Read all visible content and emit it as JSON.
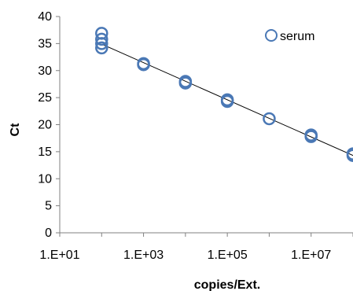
{
  "chart_data": {
    "type": "scatter",
    "title": "",
    "xlabel": "copies/Ext.",
    "ylabel": "Ct",
    "xscale": "log",
    "xlim": [
      10,
      100000000
    ],
    "ylim": [
      0,
      40
    ],
    "yticks": [
      0,
      5,
      10,
      15,
      20,
      25,
      30,
      35,
      40
    ],
    "xticks": [
      10,
      1000,
      100000,
      10000000
    ],
    "xtick_labels": [
      "1.E+01",
      "1.E+03",
      "1.E+05",
      "1.E+07"
    ],
    "grid": false,
    "legend": {
      "position": "top-right",
      "marker": "open-circle"
    },
    "colors": {
      "marker": "#4a78b5",
      "trendline": "#000000",
      "axis": "#808080"
    },
    "series": [
      {
        "name": "serum",
        "marker": "open-circle",
        "points": [
          [
            100,
            36.9
          ],
          [
            100,
            35.8
          ],
          [
            100,
            35.0
          ],
          [
            100,
            34.2
          ],
          [
            1000,
            31.3
          ],
          [
            1000,
            31.1
          ],
          [
            10000,
            28.0
          ],
          [
            10000,
            27.7
          ],
          [
            100000,
            24.6
          ],
          [
            100000,
            24.3
          ],
          [
            1000000,
            21.1
          ],
          [
            10000000,
            18.1
          ],
          [
            10000000,
            17.8
          ],
          [
            100000000,
            14.6
          ],
          [
            100000000,
            14.3
          ]
        ]
      }
    ],
    "trendline": {
      "type": "linear-log",
      "from": [
        100,
        34.9
      ],
      "to": [
        100000000,
        14.3
      ]
    }
  }
}
